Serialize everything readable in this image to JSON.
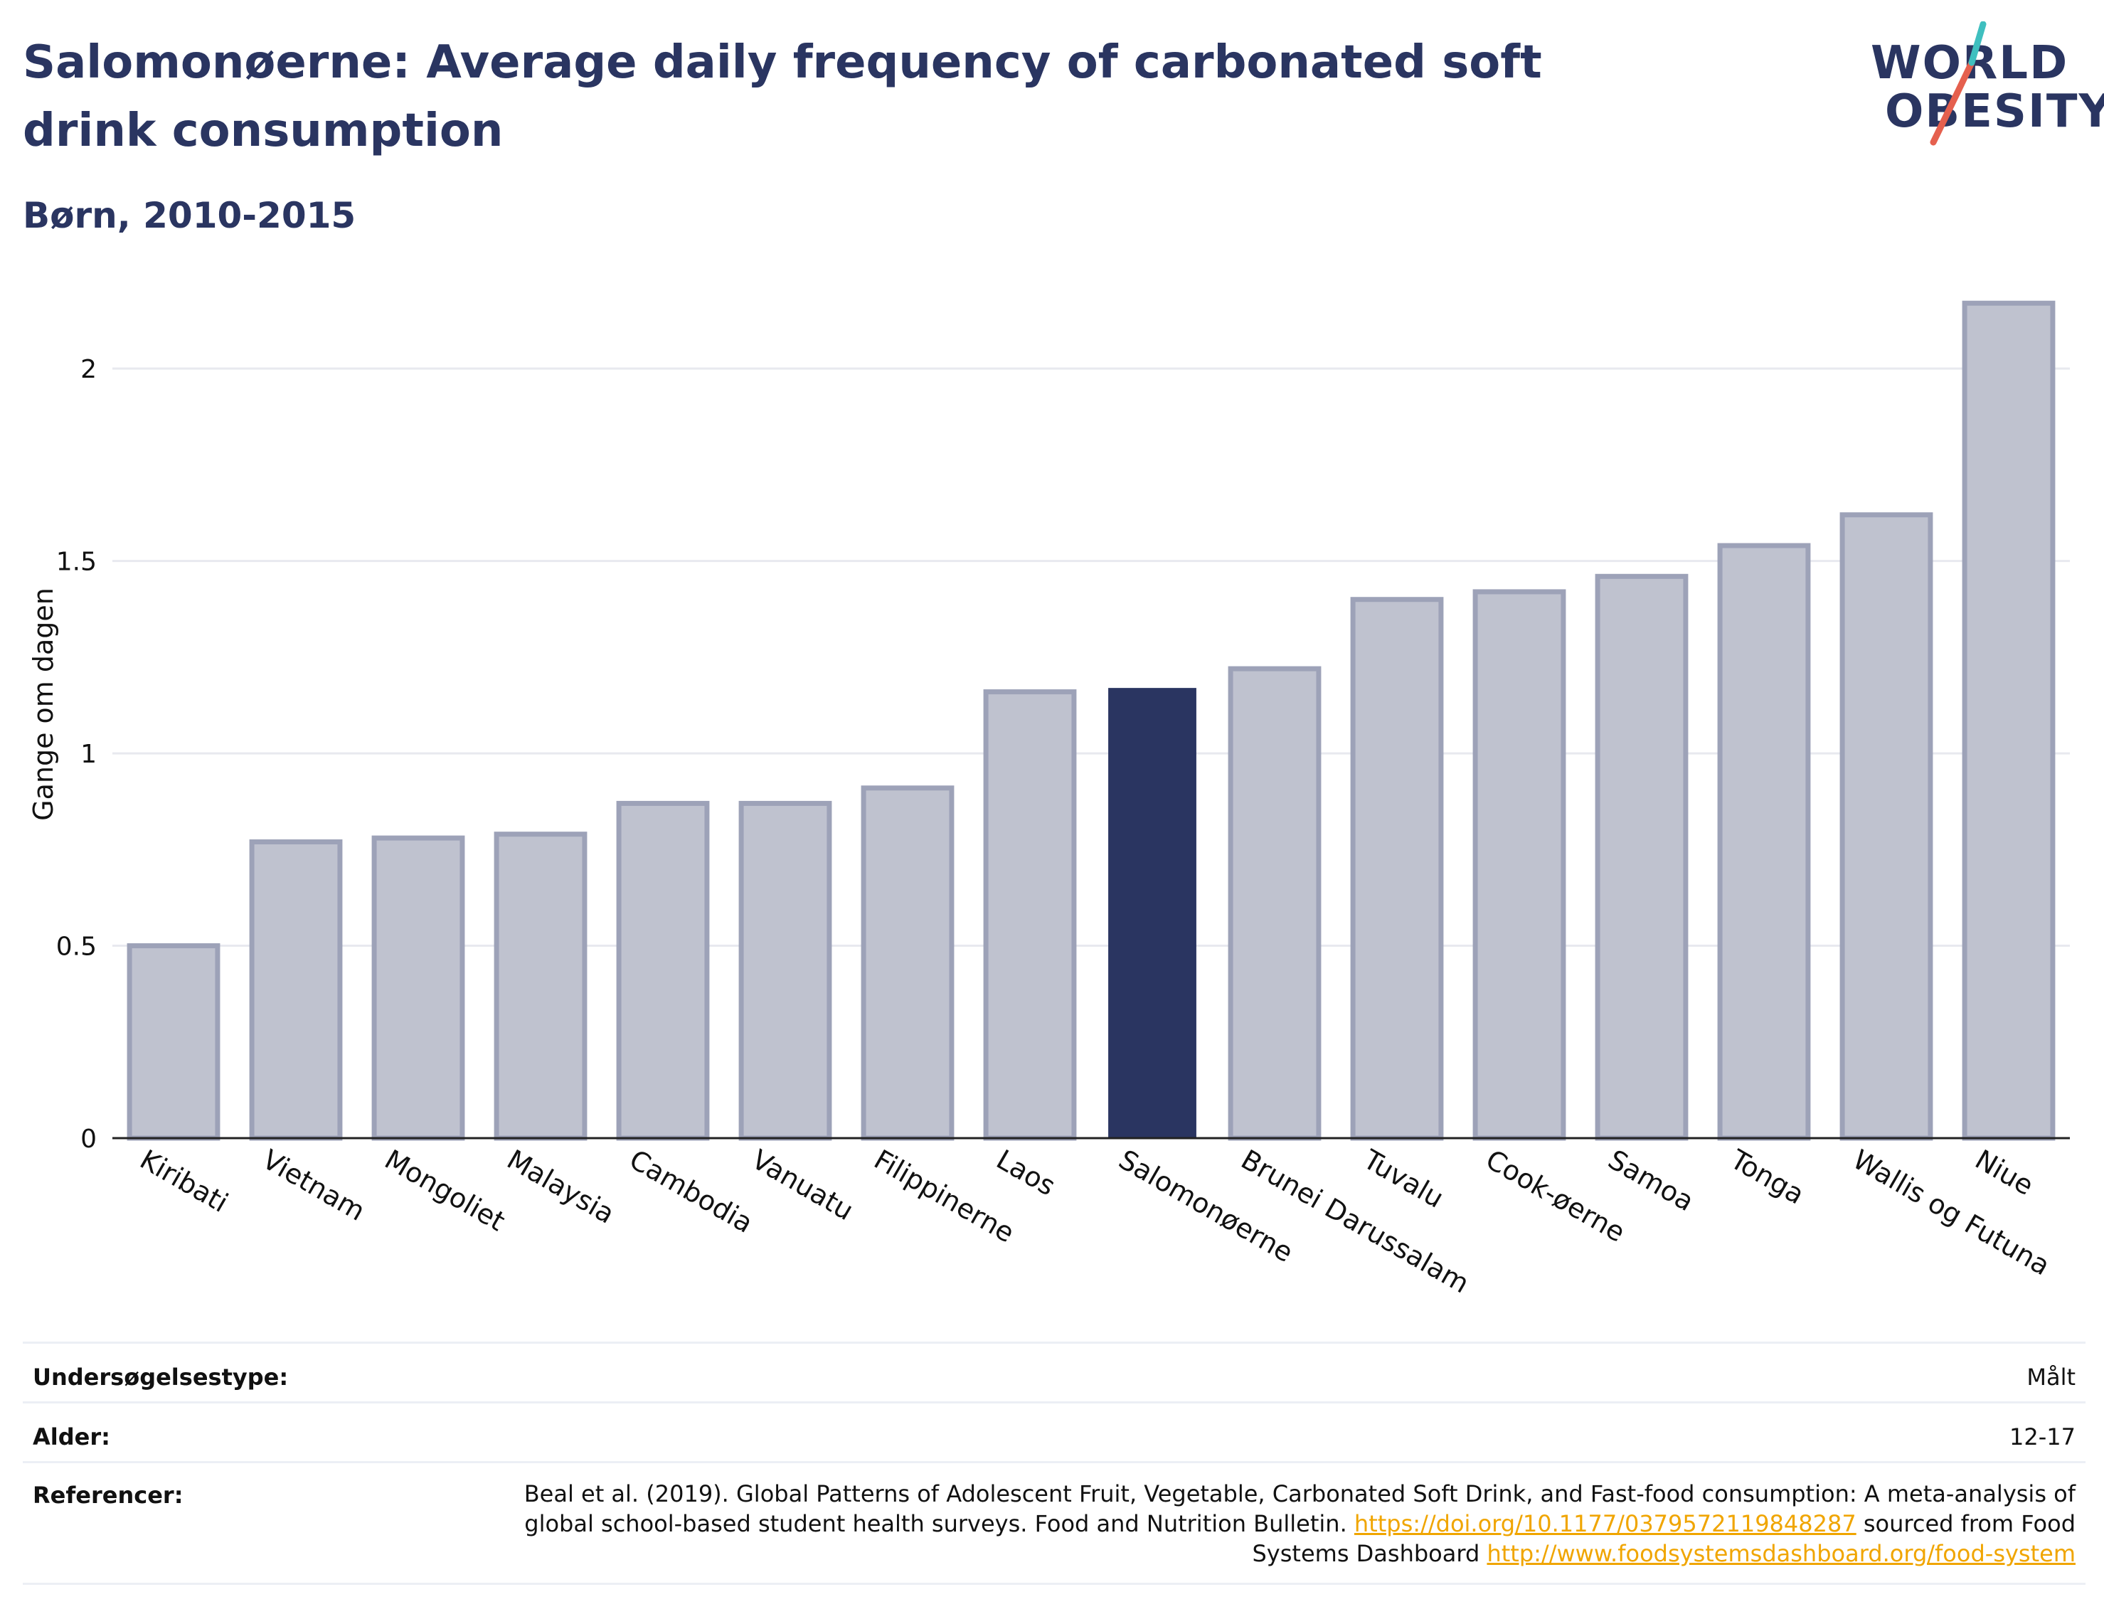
{
  "header": {
    "title": "Salomonøerne: Average daily frequency of carbonated soft drink consumption",
    "subtitle": "Børn, 2010-2015"
  },
  "logo": {
    "line1": "WORLD",
    "line2": "OBESITY",
    "colors": {
      "text": "#2a3561",
      "slash_teal": "#3fbfbf",
      "slash_red": "#e5604e"
    }
  },
  "chart_data": {
    "type": "bar",
    "categories": [
      "Kiribati",
      "Vietnam",
      "Mongoliet",
      "Malaysia",
      "Cambodia",
      "Vanuatu",
      "Filippinerne",
      "Laos",
      "Salomonøerne",
      "Brunei Darussalam",
      "Tuvalu",
      "Cook-øerne",
      "Samoa",
      "Tonga",
      "Wallis og Futuna",
      "Niue"
    ],
    "values": [
      0.5,
      0.77,
      0.78,
      0.79,
      0.87,
      0.87,
      0.91,
      1.16,
      1.17,
      1.22,
      1.4,
      1.42,
      1.46,
      1.54,
      1.62,
      2.17
    ],
    "highlight": "Salomonøerne",
    "ylabel": "Gange om dagen",
    "xlabel": "",
    "ylim": [
      0,
      2.2
    ],
    "yticks": [
      0,
      0.5,
      1,
      1.5,
      2
    ],
    "ytick_labels": [
      "0",
      "0.5",
      "1",
      "1.5",
      "2"
    ],
    "grid": true,
    "colors": {
      "bar": "#2a3561",
      "bar_muted_fill": "#bfc2cf",
      "bar_muted_stroke": "#9da2b8",
      "grid": "#e8e9ef",
      "axis": "#222222"
    }
  },
  "meta": {
    "survey_label": "Undersøgelsestype:",
    "survey_value": "Målt",
    "age_label": "Alder:",
    "age_value": "12-17",
    "ref_label": "Referencer:",
    "ref_text1": "Beal et al. (2019). Global Patterns of Adolescent Fruit, Vegetable, Carbonated Soft Drink, and Fast-food consumption: A meta-analysis of global school-based student health surveys. Food and Nutrition Bulletin.",
    "ref_link1": "https://doi.org/10.1177/0379572119848287",
    "ref_text2": "sourced from Food Systems Dashboard",
    "ref_link2": "http://www.foodsystemsdashboard.org/food-system"
  }
}
